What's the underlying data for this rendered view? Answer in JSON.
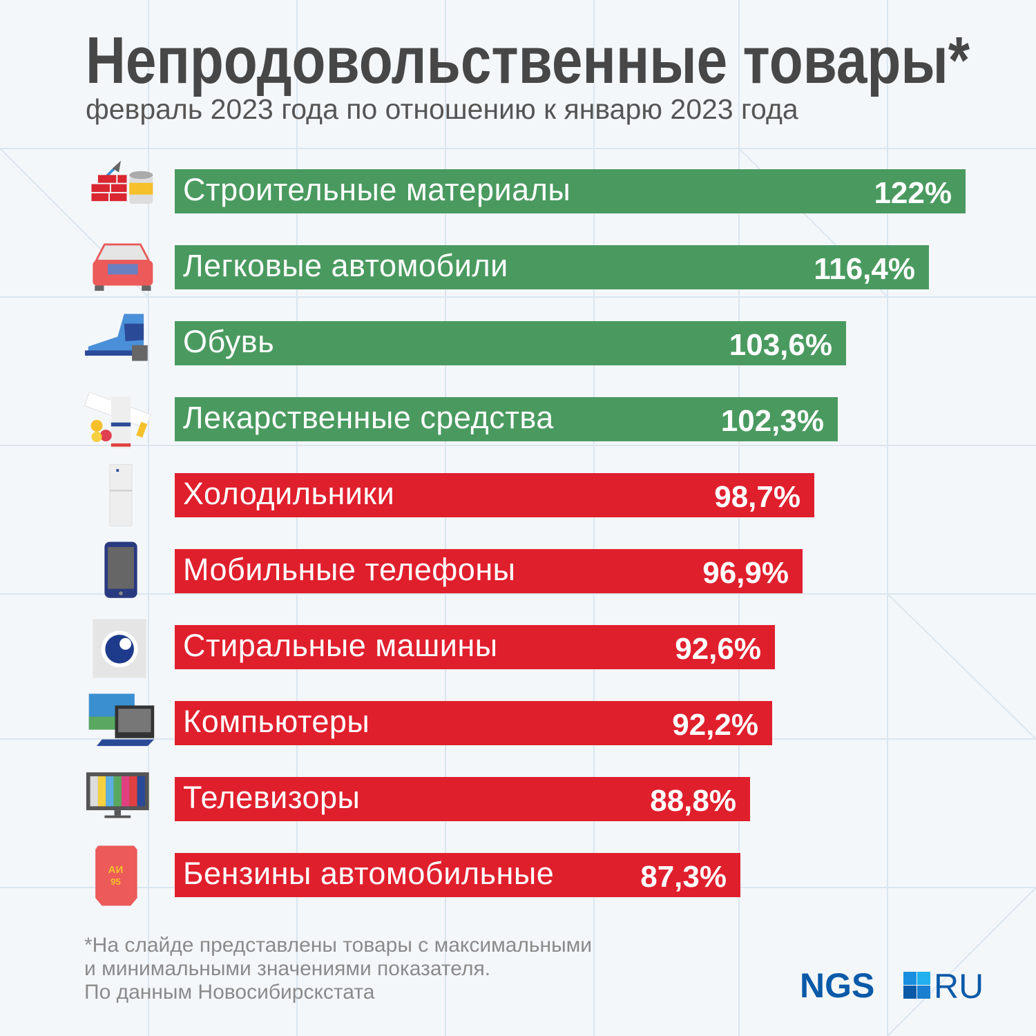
{
  "title": "Непродовольственные товары*",
  "subtitle": "февраль 2023 года по отношению к январю 2023 года",
  "chart_data": {
    "type": "bar",
    "orientation": "horizontal",
    "title": "Непродовольственные товары*",
    "subtitle": "февраль 2023 года по отношению к январю 2023 года",
    "categories": [
      "Строительные материалы",
      "Легковые автомобили",
      "Обувь",
      "Лекарственные средства",
      "Холодильники",
      "Мобильные телефоны",
      "Стиральные машины",
      "Компьютеры",
      "Телевизоры",
      "Бензины автомобильные"
    ],
    "values": [
      122,
      116.4,
      103.6,
      102.3,
      98.7,
      96.9,
      92.6,
      92.2,
      88.8,
      87.3
    ],
    "value_labels": [
      "122%",
      "116,4%",
      "103,6%",
      "102,3%",
      "98,7%",
      "96,9%",
      "92,6%",
      "92,2%",
      "88,8%",
      "87,3%"
    ],
    "icons": [
      "bricks-paint-icon",
      "car-icon",
      "boot-icon",
      "medicine-icon",
      "fridge-icon",
      "phone-icon",
      "washing-machine-icon",
      "computer-icon",
      "tv-icon",
      "fuel-canister-icon"
    ],
    "colors": {
      "above_100": "#4a9a60",
      "below_100": "#e01f2d"
    },
    "grid": false,
    "legend": "none"
  },
  "fuel_icon_text": [
    "АИ",
    "95"
  ],
  "footnote": [
    "*На слайде представлены товары с максимальными",
    "и минимальными значениями показателя.",
    "По данным Новосибирскстата"
  ],
  "logo": {
    "text_left": "NGS",
    "text_right": "RU",
    "color": "#0a5aa8"
  }
}
